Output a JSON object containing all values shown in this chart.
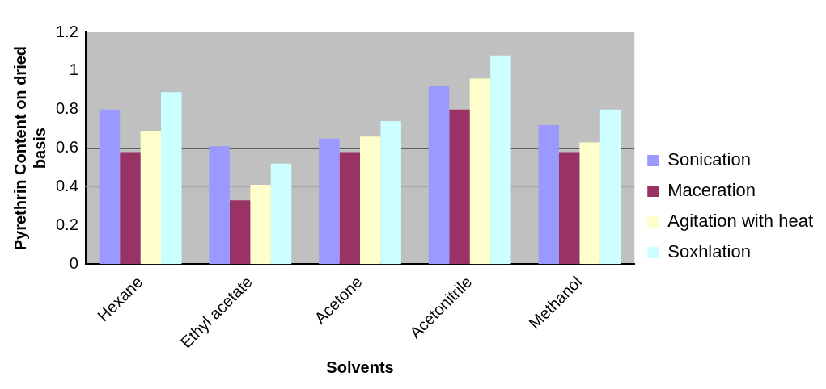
{
  "chart_data": {
    "type": "bar",
    "xlabel": "Solvents",
    "ylabel": "Pyrethrin Content on dried basis",
    "categories": [
      "Hexane",
      "Ethyl acetate",
      "Acetone",
      "Acetonitrile",
      "Methanol"
    ],
    "series": [
      {
        "name": "Sonication",
        "color": "#9999ff",
        "values": [
          0.8,
          0.61,
          0.65,
          0.92,
          0.72
        ]
      },
      {
        "name": "Maceration",
        "color": "#993366",
        "values": [
          0.58,
          0.33,
          0.58,
          0.8,
          0.58
        ]
      },
      {
        "name": "Agitation with heat",
        "color": "#ffffcc",
        "values": [
          0.69,
          0.41,
          0.66,
          0.96,
          0.63
        ]
      },
      {
        "name": "Soxhlation",
        "color": "#ccffff",
        "values": [
          0.89,
          0.52,
          0.74,
          1.08,
          0.8
        ]
      }
    ],
    "ylim": [
      0,
      1.2
    ],
    "yticks": [
      0,
      0.2,
      0.4,
      0.6,
      0.8,
      1,
      1.2
    ],
    "ref_lines": [
      {
        "axis": "y",
        "value": 0.6,
        "color": "#000000"
      },
      {
        "axis": "y",
        "value": 0.4,
        "color": "#a8a8a8"
      }
    ],
    "grid": false,
    "legend": "right"
  }
}
